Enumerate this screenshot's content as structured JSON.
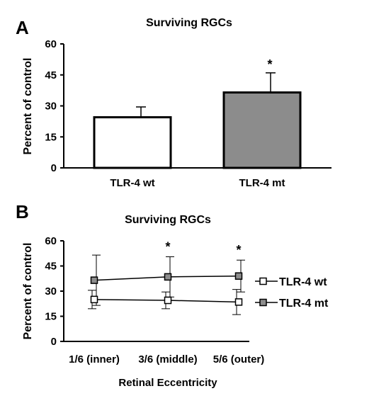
{
  "chart_data": [
    {
      "type": "bar",
      "panel": "A",
      "title": "Surviving RGCs",
      "xlabel": "",
      "ylabel": "Percent of control",
      "ylim": [
        0,
        60
      ],
      "yticks": [
        0,
        15,
        30,
        45,
        60
      ],
      "categories": [
        "TLR-4 wt",
        "TLR-4 mt"
      ],
      "values": [
        24.5,
        36.5
      ],
      "errors": [
        5,
        9.5
      ],
      "significance": [
        "",
        "*"
      ],
      "colors": [
        "#ffffff",
        "#8c8c8c"
      ]
    },
    {
      "type": "line",
      "panel": "B",
      "title": "Surviving RGCs",
      "xlabel": "Retinal Eccentricity",
      "ylabel": "Percent of control",
      "ylim": [
        0,
        60
      ],
      "yticks": [
        0,
        15,
        30,
        45,
        60
      ],
      "categories": [
        "1/6 (inner)",
        "3/6 (middle)",
        "5/6 (outer)"
      ],
      "series": [
        {
          "name": "TLR-4 wt",
          "values": [
            25,
            24.5,
            23.5
          ],
          "errors": [
            5.5,
            5,
            7.5
          ],
          "marker_color": "#ffffff"
        },
        {
          "name": "TLR-4 mt",
          "values": [
            36.5,
            38.5,
            39
          ],
          "errors": [
            15,
            12,
            9.5
          ],
          "marker_color": "#8c8c8c"
        }
      ],
      "significance": [
        "",
        "*",
        "*"
      ],
      "legend_position": "right"
    }
  ]
}
